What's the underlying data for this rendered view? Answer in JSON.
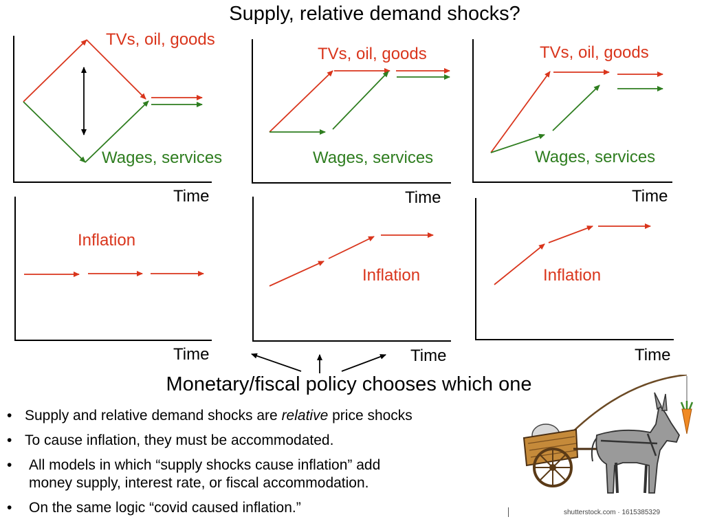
{
  "title": "Supply, relative demand shocks?",
  "panels": {
    "goods_label": "TVs, oil, goods",
    "wages_label": "Wages, services",
    "inflation_label": "Inflation",
    "time_label": "Time"
  },
  "policy_caption": "Monetary/fiscal policy chooses which one",
  "bullets": {
    "b1_before": "Supply and relative demand shocks are ",
    "b1_italic": "relative",
    "b1_after": " price shocks",
    "b2": "To cause inflation, they must be accommodated.",
    "b3_line1": "All models in which “supply shocks cause inflation” add",
    "b3_line2": "money supply, interest rate, or fiscal accommodation.",
    "b4": "On the same logic “covid caused inflation.”",
    "marker": "•"
  },
  "watermark": "shutterstock.com · 1615385329",
  "colors": {
    "goods": "#d9351c",
    "wages": "#2e7d1f",
    "inflation": "#d9351c"
  }
}
